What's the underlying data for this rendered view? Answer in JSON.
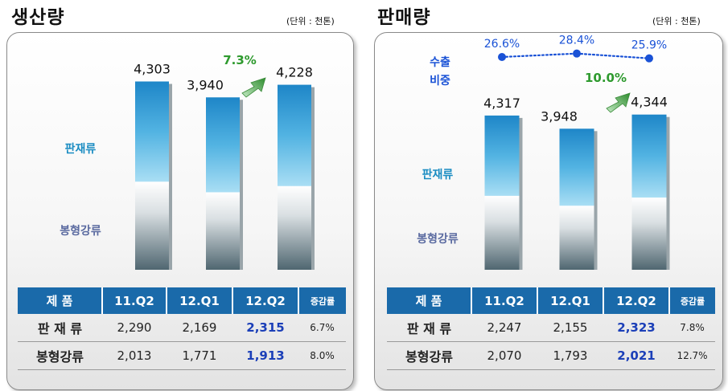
{
  "colors": {
    "header_bg": "#1a6aaa",
    "highlight_value": "#1b3fb8",
    "growth_label": "#2e9a2e",
    "export_line": "#1a52d6",
    "label_plate": "#1a8cc2",
    "label_bar": "#5a6aa0"
  },
  "production": {
    "title": "생산량",
    "unit": "(단위 : 천톤)",
    "growth_label": "7.3%",
    "legend": {
      "plate": "판재류",
      "bar": "봉형강류"
    },
    "table": {
      "header": [
        "제  품",
        "11.Q2",
        "12.Q1",
        "12.Q2",
        "증감률"
      ],
      "rows": [
        {
          "name": "판 재 류",
          "values": [
            "2,290",
            "2,169",
            "2,315"
          ],
          "change": "6.7%"
        },
        {
          "name": "봉형강류",
          "values": [
            "2,013",
            "1,771",
            "1,913"
          ],
          "change": "8.0%"
        }
      ]
    }
  },
  "sales": {
    "title": "판매량",
    "unit": "(단위 : 천톤)",
    "growth_label": "10.0%",
    "export_label": [
      "수출",
      "비중"
    ],
    "legend": {
      "plate": "판재류",
      "bar": "봉형강류"
    },
    "table": {
      "header": [
        "제  품",
        "11.Q2",
        "12.Q1",
        "12.Q2",
        "증감률"
      ],
      "rows": [
        {
          "name": "판 재 류",
          "values": [
            "2,247",
            "2,155",
            "2,323"
          ],
          "change": "7.8%"
        },
        {
          "name": "봉형강류",
          "values": [
            "2,070",
            "1,793",
            "2,021"
          ],
          "change": "12.7%"
        }
      ]
    }
  },
  "chart_data": [
    {
      "type": "bar",
      "title": "생산량",
      "stacked": true,
      "categories": [
        "11.Q2",
        "12.Q1",
        "12.Q2"
      ],
      "series": [
        {
          "name": "판재류",
          "values": [
            2290,
            2169,
            2315
          ]
        },
        {
          "name": "봉형강류",
          "values": [
            2013,
            1771,
            1913
          ]
        }
      ],
      "totals": [
        4303,
        3940,
        4228
      ],
      "total_labels": [
        "4,303",
        "3,940",
        "4,228"
      ],
      "growth_label": "7.3%"
    },
    {
      "type": "bar",
      "title": "판매량",
      "stacked": true,
      "categories": [
        "11.Q2",
        "12.Q1",
        "12.Q2"
      ],
      "series": [
        {
          "name": "판재류",
          "values": [
            2247,
            2155,
            2323
          ]
        },
        {
          "name": "봉형강류",
          "values": [
            2070,
            1793,
            2021
          ]
        }
      ],
      "totals": [
        4317,
        3948,
        4344
      ],
      "total_labels": [
        "4,317",
        "3,948",
        "4,344"
      ],
      "growth_label": "10.0%",
      "line": {
        "name": "수출 비중",
        "values": [
          26.6,
          28.4,
          25.9
        ],
        "labels": [
          "26.6%",
          "28.4%",
          "25.9%"
        ],
        "style": "dotted"
      }
    }
  ]
}
